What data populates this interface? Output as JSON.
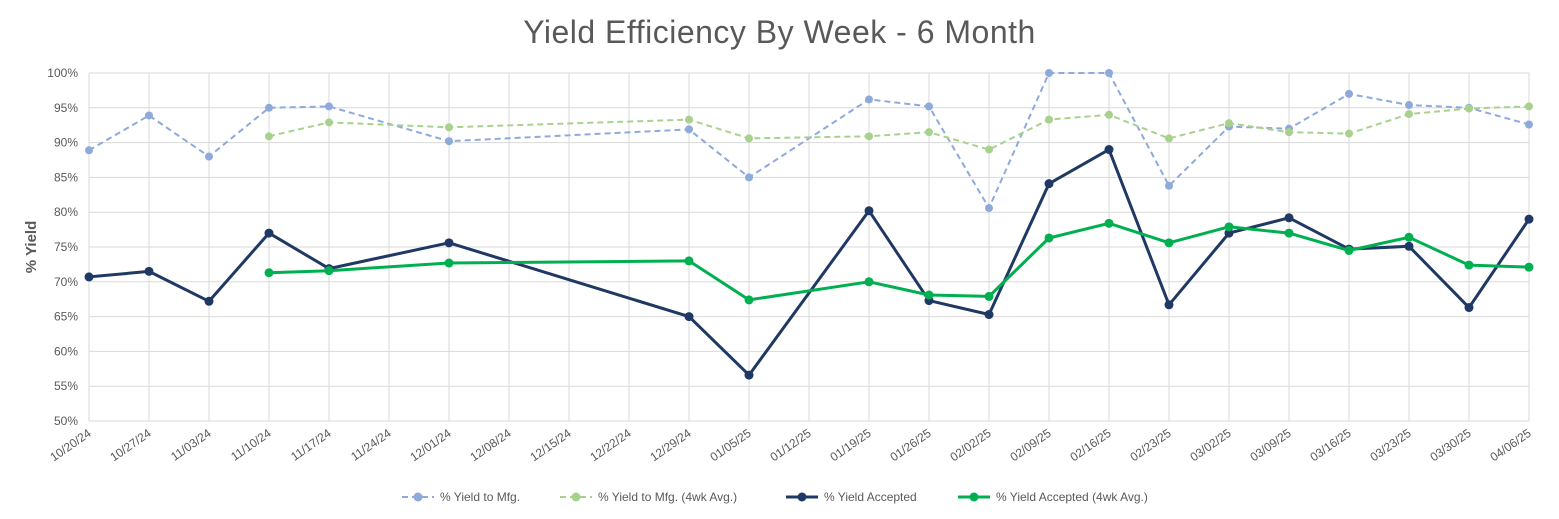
{
  "chart_data": {
    "type": "line",
    "title": "Yield Efficiency By Week - 6 Month",
    "xlabel": "",
    "ylabel": "% Yield",
    "ylim": [
      50,
      100
    ],
    "ytick_labels": [
      "50%",
      "55%",
      "60%",
      "65%",
      "70%",
      "75%",
      "80%",
      "85%",
      "90%",
      "95%",
      "100%"
    ],
    "categories": [
      "10/20/24",
      "10/27/24",
      "11/03/24",
      "11/10/24",
      "11/17/24",
      "11/24/24",
      "12/01/24",
      "12/08/24",
      "12/15/24",
      "12/22/24",
      "12/29/24",
      "01/05/25",
      "01/12/25",
      "01/19/25",
      "01/26/25",
      "02/02/25",
      "02/09/25",
      "02/16/25",
      "02/23/25",
      "03/02/25",
      "03/09/25",
      "03/16/25",
      "03/23/25",
      "03/30/25",
      "04/06/25"
    ],
    "grid": true,
    "legend_position": "bottom",
    "series": [
      {
        "name": "% Yield to Mfg.",
        "color": "#8eaadb",
        "style": "dashed",
        "values": [
          88.9,
          93.9,
          88.0,
          95.0,
          95.2,
          null,
          90.2,
          null,
          null,
          null,
          91.9,
          85.0,
          null,
          96.2,
          95.2,
          80.6,
          100.0,
          100.0,
          83.8,
          92.3,
          92.0,
          97.0,
          95.4,
          95.0,
          92.6
        ]
      },
      {
        "name": "% Yield to Mfg. (4wk Avg.)",
        "color": "#a9d18e",
        "style": "dashed",
        "values": [
          null,
          null,
          null,
          90.9,
          92.9,
          null,
          92.2,
          null,
          null,
          null,
          93.3,
          90.6,
          null,
          90.9,
          91.5,
          89.0,
          93.3,
          94.0,
          90.6,
          92.8,
          91.5,
          91.3,
          94.1,
          94.9,
          95.2
        ]
      },
      {
        "name": "% Yield Accepted",
        "color": "#203864",
        "style": "solid",
        "values": [
          70.7,
          71.5,
          67.2,
          77.0,
          71.9,
          null,
          75.6,
          null,
          null,
          null,
          65.0,
          56.6,
          null,
          80.2,
          67.3,
          65.3,
          84.1,
          89.0,
          66.7,
          77.0,
          79.2,
          74.7,
          75.1,
          66.3,
          79.0
        ]
      },
      {
        "name": "% Yield Accepted (4wk Avg.)",
        "color": "#00b050",
        "style": "solid",
        "values": [
          null,
          null,
          null,
          71.3,
          71.6,
          null,
          72.7,
          null,
          null,
          null,
          73.0,
          67.4,
          null,
          70.0,
          68.1,
          67.9,
          76.3,
          78.4,
          75.6,
          77.9,
          77.0,
          74.5,
          76.4,
          72.4,
          72.1
        ]
      }
    ]
  }
}
